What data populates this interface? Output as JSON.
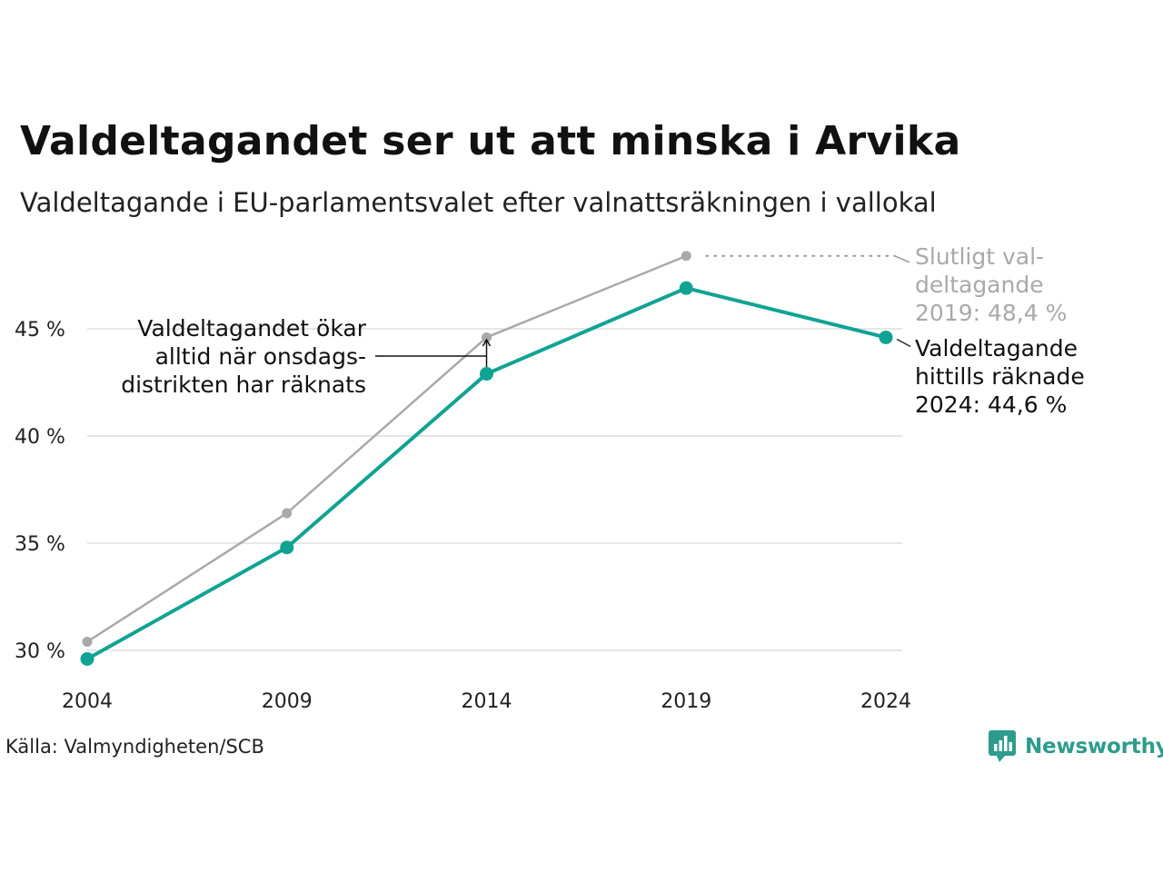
{
  "header": {
    "title": "Valdeltagandet ser ut att minska i Arvika",
    "subtitle": "Valdeltagande i EU-parlamentsvalet efter valnattsräkningen i vallokal"
  },
  "footer": {
    "source": "Källa: Valmyndigheten/SCB",
    "brand": "Newsworthy"
  },
  "colors": {
    "series_final": "#a9a9a9",
    "series_counted": "#10a394",
    "grid": "#e6e6e6",
    "brand": "#2e9c8c"
  },
  "icons": {
    "brand_logo": "bar-chart-speech-bubble-icon"
  },
  "chart_data": {
    "type": "line",
    "title": "Valdeltagandet ser ut att minska i Arvika",
    "subtitle": "Valdeltagande i EU-parlamentsvalet efter valnattsräkningen i vallokal",
    "x": [
      2004,
      2009,
      2014,
      2019,
      2024
    ],
    "x_tick_labels": [
      "2004",
      "2009",
      "2014",
      "2019",
      "2024"
    ],
    "y_ticks": [
      30,
      35,
      40,
      45
    ],
    "y_tick_labels": [
      "30 %",
      "35 %",
      "40 %",
      "45 %"
    ],
    "ylim": [
      29.5,
      48.5
    ],
    "grid": true,
    "series": [
      {
        "key": "final",
        "color": "#a9a9a9",
        "values": [
          30.4,
          36.4,
          44.6,
          48.4,
          null
        ]
      },
      {
        "key": "counted",
        "color": "#10a394",
        "values": [
          29.6,
          34.8,
          42.9,
          46.9,
          44.6
        ]
      }
    ],
    "annotations": {
      "final_2019": [
        "Slutligt val-",
        "deltagande",
        "2019: 48,4 %"
      ],
      "counted_2024": [
        "Valdeltagande",
        "hittills räknade",
        "2024: 44,6 %"
      ],
      "wednesday_note": [
        "Valdeltagandet ökar",
        "alltid när onsdags-",
        "distrikten har räknats"
      ]
    }
  }
}
